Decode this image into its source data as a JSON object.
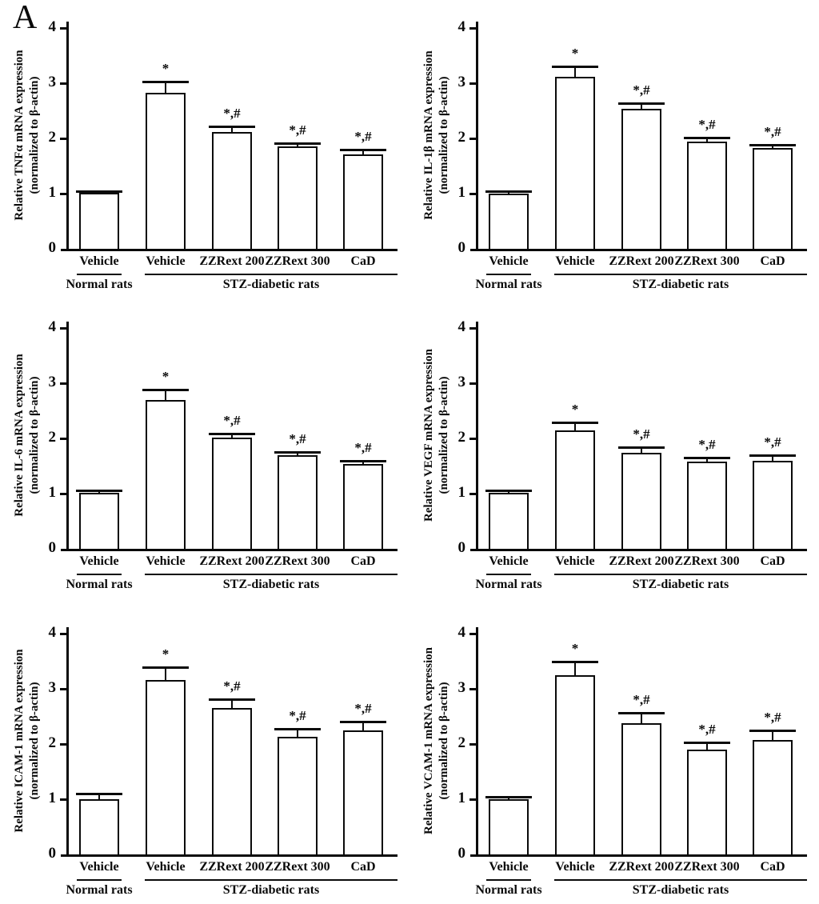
{
  "figure": {
    "panel_label": "A",
    "background_color": "#ffffff",
    "ink_color": "#000000",
    "bar_fill_color": "#ffffff"
  },
  "chart_data": [
    {
      "type": "bar",
      "name": "tnfa",
      "ylabel_line1": "Relative TNFα mRNA expression",
      "ylabel_line2": "(normalized to β-actin)",
      "categories": [
        "Vehicle",
        "Vehicle",
        "ZZRext 200",
        "ZZRext 300",
        "CaD"
      ],
      "values": [
        1.01,
        2.83,
        2.12,
        1.85,
        1.71
      ],
      "errors": [
        0.04,
        0.2,
        0.1,
        0.07,
        0.08
      ],
      "sig_markers": [
        "",
        "*",
        "*,#",
        "*,#",
        "*,#"
      ],
      "group_labels": [
        "Normal rats",
        "STZ-diabetic rats"
      ],
      "group_spans": [
        [
          0,
          0
        ],
        [
          1,
          4
        ]
      ],
      "ylim": [
        0,
        4
      ],
      "yticks": [
        "0",
        "1",
        "2",
        "3",
        "4"
      ],
      "grid": false,
      "legend": "none"
    },
    {
      "type": "bar",
      "name": "il1b",
      "ylabel_line1": "Relative IL-1β mRNA expression",
      "ylabel_line2": "(normalized to β-actin)",
      "categories": [
        "Vehicle",
        "Vehicle",
        "ZZRext 200",
        "ZZRext 300",
        "CaD"
      ],
      "values": [
        1.0,
        3.11,
        2.53,
        1.94,
        1.82
      ],
      "errors": [
        0.04,
        0.19,
        0.11,
        0.08,
        0.06
      ],
      "sig_markers": [
        "",
        "*",
        "*,#",
        "*,#",
        "*,#"
      ],
      "group_labels": [
        "Normal rats",
        "STZ-diabetic rats"
      ],
      "group_spans": [
        [
          0,
          0
        ],
        [
          1,
          4
        ]
      ],
      "ylim": [
        0,
        4
      ],
      "yticks": [
        "0",
        "1",
        "2",
        "3",
        "4"
      ],
      "grid": false,
      "legend": "none"
    },
    {
      "type": "bar",
      "name": "il6",
      "ylabel_line1": "Relative IL-6 mRNA expression",
      "ylabel_line2": "(normalized to β-actin)",
      "categories": [
        "Vehicle",
        "Vehicle",
        "ZZRext 200",
        "ZZRext 300",
        "CaD"
      ],
      "values": [
        1.01,
        2.7,
        2.01,
        1.69,
        1.54
      ],
      "errors": [
        0.05,
        0.18,
        0.08,
        0.07,
        0.06
      ],
      "sig_markers": [
        "",
        "*",
        "*,#",
        "*,#",
        "*,#"
      ],
      "group_labels": [
        "Normal rats",
        "STZ-diabetic rats"
      ],
      "group_spans": [
        [
          0,
          0
        ],
        [
          1,
          4
        ]
      ],
      "ylim": [
        0,
        4
      ],
      "yticks": [
        "0",
        "1",
        "2",
        "3",
        "4"
      ],
      "grid": false,
      "legend": "none"
    },
    {
      "type": "bar",
      "name": "vegf",
      "ylabel_line1": "Relative VEGF mRNA expression",
      "ylabel_line2": "(normalized to β-actin)",
      "categories": [
        "Vehicle",
        "Vehicle",
        "ZZRext 200",
        "ZZRext 300",
        "CaD"
      ],
      "values": [
        1.01,
        2.15,
        1.74,
        1.58,
        1.6
      ],
      "errors": [
        0.05,
        0.14,
        0.1,
        0.07,
        0.09
      ],
      "sig_markers": [
        "",
        "*",
        "*,#",
        "*,#",
        "*,#"
      ],
      "group_labels": [
        "Normal rats",
        "STZ-diabetic rats"
      ],
      "group_spans": [
        [
          0,
          0
        ],
        [
          1,
          4
        ]
      ],
      "ylim": [
        0,
        4
      ],
      "yticks": [
        "0",
        "1",
        "2",
        "3",
        "4"
      ],
      "grid": false,
      "legend": "none"
    },
    {
      "type": "bar",
      "name": "icam1",
      "ylabel_line1": "Relative ICAM-1 mRNA expression",
      "ylabel_line2": "(normalized to β-actin)",
      "categories": [
        "Vehicle",
        "Vehicle",
        "ZZRext 200",
        "ZZRext 300",
        "CaD"
      ],
      "values": [
        1.0,
        3.16,
        2.65,
        2.13,
        2.25
      ],
      "errors": [
        0.1,
        0.23,
        0.16,
        0.14,
        0.15
      ],
      "sig_markers": [
        "",
        "*",
        "*,#",
        "*,#",
        "*,#"
      ],
      "group_labels": [
        "Normal rats",
        "STZ-diabetic rats"
      ],
      "group_spans": [
        [
          0,
          0
        ],
        [
          1,
          4
        ]
      ],
      "ylim": [
        0,
        4
      ],
      "yticks": [
        "0",
        "1",
        "2",
        "3",
        "4"
      ],
      "grid": false,
      "legend": "none"
    },
    {
      "type": "bar",
      "name": "vcam1",
      "ylabel_line1": "Relative VCAM-1 mRNA expression",
      "ylabel_line2": "(normalized to β-actin)",
      "categories": [
        "Vehicle",
        "Vehicle",
        "ZZRext 200",
        "ZZRext 300",
        "CaD"
      ],
      "values": [
        1.0,
        3.24,
        2.38,
        1.9,
        2.07
      ],
      "errors": [
        0.04,
        0.25,
        0.18,
        0.13,
        0.17
      ],
      "sig_markers": [
        "",
        "*",
        "*,#",
        "*,#",
        "*,#"
      ],
      "group_labels": [
        "Normal rats",
        "STZ-diabetic rats"
      ],
      "group_spans": [
        [
          0,
          0
        ],
        [
          1,
          4
        ]
      ],
      "ylim": [
        0,
        4
      ],
      "yticks": [
        "0",
        "1",
        "2",
        "3",
        "4"
      ],
      "grid": false,
      "legend": "none"
    }
  ]
}
